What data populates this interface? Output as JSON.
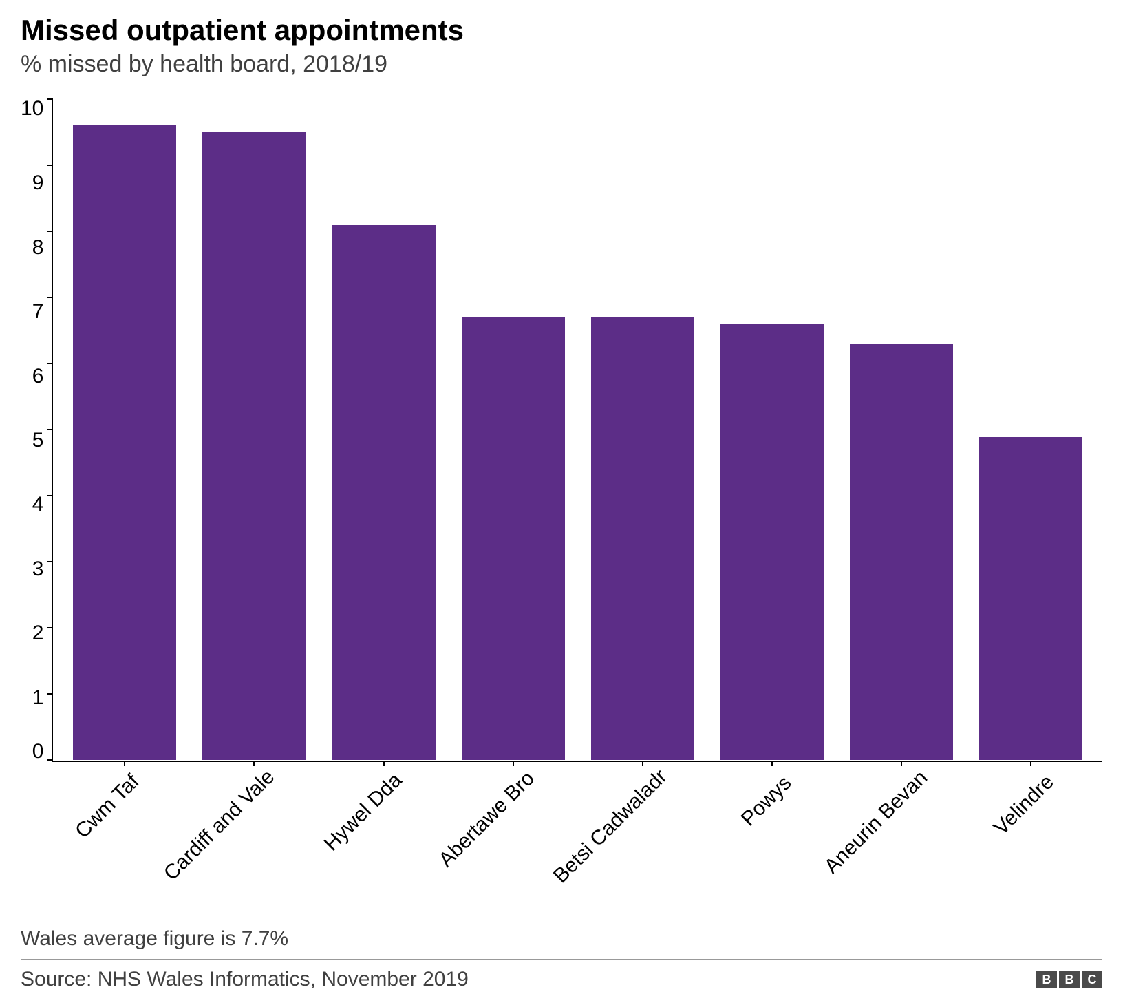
{
  "chart": {
    "type": "bar",
    "title": "Missed outpatient appointments",
    "subtitle": "% missed by health board, 2018/19",
    "title_fontsize": 42,
    "title_color": "#000000",
    "subtitle_fontsize": 34,
    "subtitle_color": "#404040",
    "categories": [
      "Cwm Taf",
      "Cardiff and Vale",
      "Hywel Dda",
      "Abertawe Bro",
      "Betsi Cadwaladr",
      "Powys",
      "Aneurin Bevan",
      "Velindre"
    ],
    "values": [
      9.6,
      9.5,
      8.1,
      6.7,
      6.7,
      6.6,
      6.3,
      4.9
    ],
    "bar_color": "#5c2d87",
    "bar_border_color": "#ffffff",
    "ylim": [
      0,
      10
    ],
    "yticks": [
      10,
      9,
      8,
      7,
      6,
      5,
      4,
      3,
      2,
      1,
      0
    ],
    "ytick_step": 1,
    "axis_color": "#000000",
    "tick_fontsize": 30,
    "xlabel_fontsize": 30,
    "xlabel_rotation": -45,
    "background_color": "#ffffff",
    "bar_width_ratio": 0.75,
    "footnote": "Wales average figure is 7.7%",
    "source": "Source: NHS Wales Informatics, November 2019",
    "logo": "BBC",
    "footer_color": "#404040",
    "footer_fontsize": 30,
    "footer_divider_color": "#999999"
  }
}
